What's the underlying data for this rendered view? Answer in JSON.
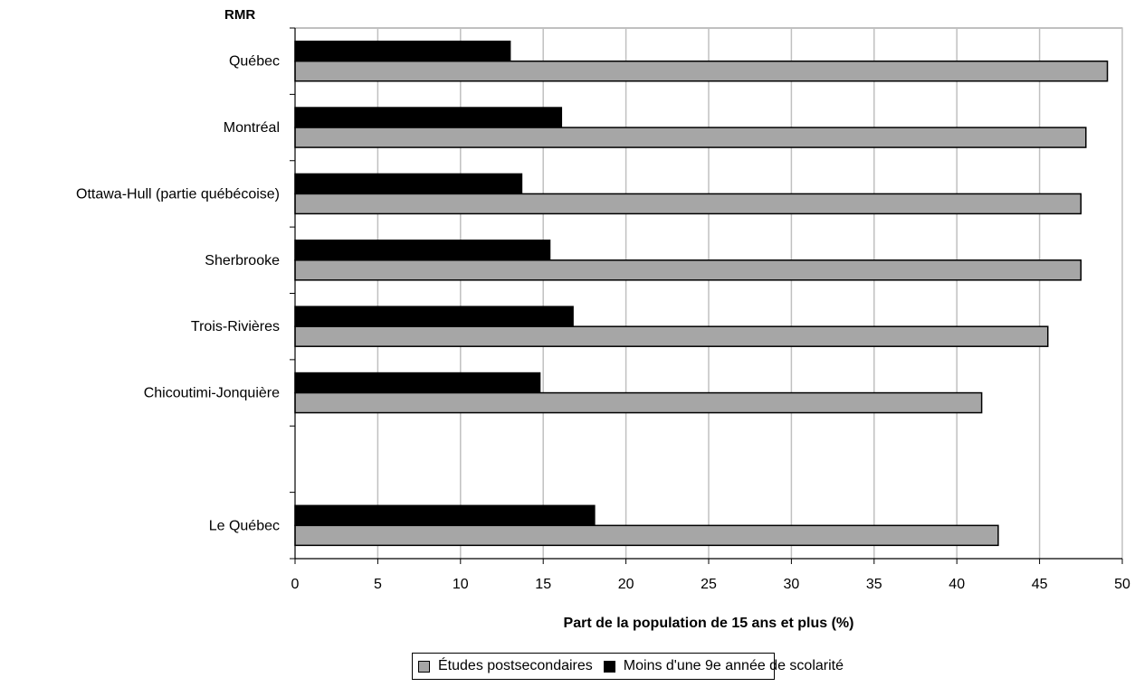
{
  "chart_data": {
    "type": "bar",
    "orientation": "horizontal",
    "y_axis_title": "RMR",
    "xlabel": "Part de la population de 15 ans et plus (%)",
    "xlim": [
      0,
      50
    ],
    "x_ticks": [
      0,
      5,
      10,
      15,
      20,
      25,
      30,
      35,
      40,
      45,
      50
    ],
    "grid": "vertical",
    "legend_placement": "bottom",
    "categories": [
      "Québec",
      "Montréal",
      "Ottawa-Hull (partie québécoise)",
      "Sherbrooke",
      "Trois-Rivières",
      "Chicoutimi-Jonquière",
      "",
      "Le Québec"
    ],
    "series": [
      {
        "name": "Études postsecondaires",
        "color": "#a6a6a6",
        "values": [
          49.1,
          47.8,
          47.5,
          47.5,
          45.5,
          41.5,
          null,
          42.5
        ]
      },
      {
        "name": "Moins d'une 9e année de scolarité",
        "color": "#000000",
        "values": [
          13.0,
          16.1,
          13.7,
          15.4,
          16.8,
          14.8,
          null,
          18.1
        ]
      }
    ]
  }
}
